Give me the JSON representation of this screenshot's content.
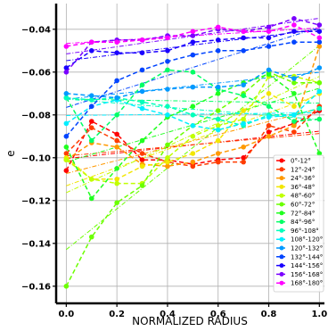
{
  "chart_data": {
    "type": "line",
    "title": "",
    "xlabel": "NORMALIZED RADIUS",
    "ylabel": "e",
    "xlim": [
      -0.04,
      1.02
    ],
    "ylim": [
      -0.168,
      -0.028
    ],
    "xticks": [
      0.0,
      0.2,
      0.4,
      0.6,
      0.8,
      1.0
    ],
    "xtick_labels": [
      "0.0",
      "0.2",
      "0.4",
      "0.6",
      "0.8",
      "1.0"
    ],
    "yticks": [
      -0.16,
      -0.14,
      -0.12,
      -0.1,
      -0.08,
      -0.06,
      -0.04
    ],
    "ytick_labels": [
      "−0.16",
      "−0.14",
      "−0.12",
      "−0.10",
      "−0.08",
      "−0.06",
      "−0.04"
    ],
    "grid": true,
    "legend_position": "bottom-right",
    "x": [
      0.0,
      0.1,
      0.2,
      0.3,
      0.4,
      0.5,
      0.6,
      0.7,
      0.8,
      0.9,
      1.0
    ],
    "series": [
      {
        "name": "0°-12°",
        "color": "#ff0000",
        "values": [
          -0.106,
          -0.083,
          -0.089,
          -0.101,
          -0.101,
          -0.103,
          -0.101,
          -0.1,
          -0.088,
          -0.084,
          -0.078
        ]
      },
      {
        "name": "12°-24°",
        "color": "#ff3c00",
        "values": [
          -0.098,
          -0.086,
          -0.092,
          -0.098,
          -0.102,
          -0.104,
          -0.102,
          -0.102,
          -0.085,
          -0.088,
          -0.076
        ]
      },
      {
        "name": "24°-36°",
        "color": "#ff9900",
        "values": [
          -0.101,
          -0.093,
          -0.095,
          -0.103,
          -0.104,
          -0.102,
          -0.098,
          -0.095,
          -0.09,
          -0.085,
          -0.048
        ]
      },
      {
        "name": "36°-48°",
        "color": "#f2e600",
        "values": [
          -0.1,
          -0.11,
          -0.11,
          -0.104,
          -0.102,
          -0.098,
          -0.092,
          -0.078,
          -0.07,
          -0.076,
          -0.07
        ]
      },
      {
        "name": "48°-60°",
        "color": "#c0ff00",
        "values": [
          -0.101,
          -0.11,
          -0.112,
          -0.112,
          -0.1,
          -0.09,
          -0.085,
          -0.082,
          -0.062,
          -0.062,
          -0.065
        ]
      },
      {
        "name": "60°-72°",
        "color": "#6bff00",
        "values": [
          -0.16,
          -0.137,
          -0.121,
          -0.113,
          -0.094,
          -0.085,
          -0.078,
          -0.07,
          -0.06,
          -0.065,
          -0.065
        ]
      },
      {
        "name": "72°-84°",
        "color": "#20ff20",
        "values": [
          -0.095,
          -0.119,
          -0.105,
          -0.092,
          -0.081,
          -0.076,
          -0.07,
          -0.065,
          -0.061,
          -0.07,
          -0.098
        ]
      },
      {
        "name": "84°-96°",
        "color": "#00ff66",
        "values": [
          -0.072,
          -0.092,
          -0.08,
          -0.066,
          -0.059,
          -0.06,
          -0.068,
          -0.071,
          -0.076,
          -0.083,
          -0.082
        ]
      },
      {
        "name": "96°-108°",
        "color": "#00ffbb",
        "values": [
          -0.072,
          -0.073,
          -0.072,
          -0.074,
          -0.076,
          -0.08,
          -0.082,
          -0.085,
          -0.08,
          -0.08,
          -0.077
        ]
      },
      {
        "name": "108°-120°",
        "color": "#00eeff",
        "values": [
          -0.084,
          -0.076,
          -0.073,
          -0.077,
          -0.08,
          -0.085,
          -0.087,
          -0.084,
          -0.081,
          -0.08,
          -0.069
        ]
      },
      {
        "name": "120°-132°",
        "color": "#0099ff",
        "values": [
          -0.07,
          -0.071,
          -0.072,
          -0.069,
          -0.068,
          -0.067,
          -0.067,
          -0.066,
          -0.059,
          -0.063,
          -0.058
        ]
      },
      {
        "name": "132°-144°",
        "color": "#0044ff",
        "values": [
          -0.09,
          -0.076,
          -0.064,
          -0.059,
          -0.055,
          -0.052,
          -0.05,
          -0.05,
          -0.048,
          -0.046,
          -0.046
        ]
      },
      {
        "name": "144°-156°",
        "color": "#1a00ff",
        "values": [
          -0.058,
          -0.05,
          -0.051,
          -0.051,
          -0.05,
          -0.046,
          -0.045,
          -0.044,
          -0.044,
          -0.041,
          -0.041
        ]
      },
      {
        "name": "156°-168°",
        "color": "#7a00ff",
        "values": [
          -0.06,
          -0.046,
          -0.045,
          -0.045,
          -0.043,
          -0.043,
          -0.04,
          -0.041,
          -0.039,
          -0.035,
          -0.038
        ]
      },
      {
        "name": "168°-180°",
        "color": "#ff00ff",
        "values": [
          -0.048,
          -0.046,
          -0.046,
          -0.045,
          -0.044,
          -0.041,
          -0.039,
          -0.041,
          -0.041,
          -0.038,
          -0.044
        ]
      }
    ]
  }
}
